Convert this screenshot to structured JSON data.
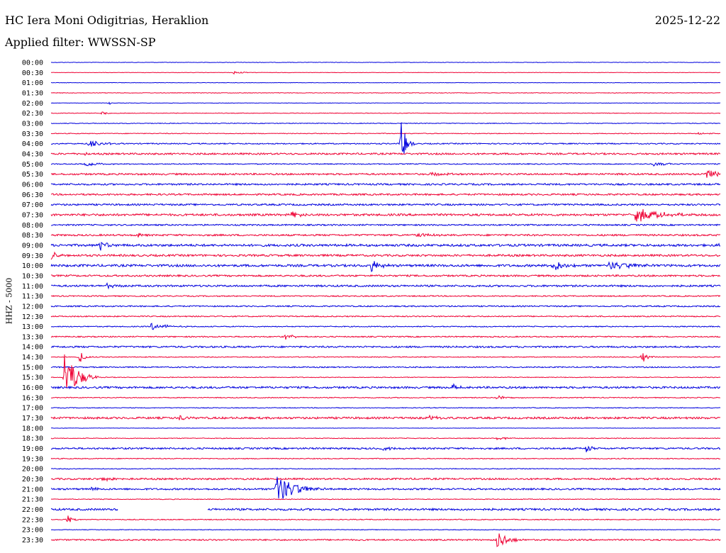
{
  "header": {
    "station": "HC Iera Moni Odigitrias, Heraklion",
    "date": "2025-12-22",
    "filter_label": "Applied filter: WWSSN-SP",
    "channel_label": "HHZ - 5000"
  },
  "colors": {
    "blue": "#0000dd",
    "red": "#ee0033"
  },
  "chart_data": {
    "type": "line",
    "title": "HC Iera Moni Odigitrias, Heraklion",
    "ylabel": "HHZ - 5000",
    "row_labels": [
      "00:00",
      "00:30",
      "01:00",
      "01:30",
      "02:00",
      "02:30",
      "03:00",
      "03:30",
      "04:00",
      "04:30",
      "05:00",
      "05:30",
      "06:00",
      "06:30",
      "07:00",
      "07:30",
      "08:00",
      "08:30",
      "09:00",
      "09:30",
      "10:00",
      "10:30",
      "11:00",
      "11:30",
      "12:00",
      "12:30",
      "13:00",
      "13:30",
      "14:00",
      "14:30",
      "15:00",
      "15:30",
      "16:00",
      "16:30",
      "17:00",
      "17:30",
      "18:00",
      "18:30",
      "19:00",
      "19:30",
      "20:00",
      "20:30",
      "21:00",
      "21:30",
      "22:00",
      "22:30",
      "23:00",
      "23:30"
    ],
    "row_colors": [
      "blue",
      "red"
    ],
    "row_minutes": 30,
    "noise_level": [
      0.3,
      0.3,
      0.3,
      0.4,
      0.3,
      0.4,
      0.5,
      0.5,
      0.8,
      1.2,
      0.7,
      1.2,
      1.2,
      1.2,
      1.2,
      1.5,
      1.0,
      1.2,
      1.6,
      1.4,
      1.6,
      1.2,
      1.3,
      0.8,
      0.9,
      0.8,
      0.7,
      0.8,
      1.2,
      0.6,
      0.8,
      0.5,
      1.4,
      0.6,
      0.5,
      1.4,
      0.3,
      0.5,
      1.2,
      0.6,
      0.5,
      1.2,
      1.2,
      0.5,
      1.4,
      0.6,
      0.4,
      1.0
    ],
    "gaps": [
      {
        "row": 44,
        "start_min": 3.0,
        "end_min": 7.0
      }
    ],
    "events": [
      {
        "row": 1,
        "minute": 8.2,
        "amp": 3,
        "dur_min": 0.8
      },
      {
        "row": 4,
        "minute": 2.6,
        "amp": 3,
        "dur_min": 0.2
      },
      {
        "row": 5,
        "minute": 2.3,
        "amp": 3,
        "dur_min": 0.6
      },
      {
        "row": 7,
        "minute": 29.0,
        "amp": 2,
        "dur_min": 1.2
      },
      {
        "row": 8,
        "minute": 1.7,
        "amp": 6,
        "dur_min": 1.5
      },
      {
        "row": 8,
        "minute": 15.7,
        "amp": 32,
        "dur_min": 0.6
      },
      {
        "row": 9,
        "minute": 1.4,
        "amp": 3,
        "dur_min": 0.6
      },
      {
        "row": 10,
        "minute": 1.5,
        "amp": 5,
        "dur_min": 1.3
      },
      {
        "row": 10,
        "minute": 27.0,
        "amp": 3,
        "dur_min": 1.8
      },
      {
        "row": 11,
        "minute": 29.4,
        "amp": 12,
        "dur_min": 0.8
      },
      {
        "row": 11,
        "minute": 17.0,
        "amp": 3,
        "dur_min": 1.5
      },
      {
        "row": 15,
        "minute": 26.2,
        "amp": 10,
        "dur_min": 3.0
      },
      {
        "row": 15,
        "minute": 10.8,
        "amp": 4,
        "dur_min": 1.2
      },
      {
        "row": 17,
        "minute": 3.9,
        "amp": 4,
        "dur_min": 0.5
      },
      {
        "row": 17,
        "minute": 16.4,
        "amp": 3,
        "dur_min": 1.5
      },
      {
        "row": 18,
        "minute": 2.2,
        "amp": 8,
        "dur_min": 0.8
      },
      {
        "row": 18,
        "minute": 30.0,
        "amp": 8,
        "dur_min": 1.0
      },
      {
        "row": 19,
        "minute": 0.0,
        "amp": 7,
        "dur_min": 0.8
      },
      {
        "row": 20,
        "minute": 14.3,
        "amp": 11,
        "dur_min": 1.0
      },
      {
        "row": 20,
        "minute": 22.5,
        "amp": 10,
        "dur_min": 1.2
      },
      {
        "row": 20,
        "minute": 25.0,
        "amp": 6,
        "dur_min": 3.0
      },
      {
        "row": 22,
        "minute": 2.5,
        "amp": 3,
        "dur_min": 1.2
      },
      {
        "row": 26,
        "minute": 4.5,
        "amp": 5,
        "dur_min": 1.8
      },
      {
        "row": 27,
        "minute": 10.5,
        "amp": 4,
        "dur_min": 1.0
      },
      {
        "row": 29,
        "minute": 1.3,
        "amp": 9,
        "dur_min": 0.6
      },
      {
        "row": 29,
        "minute": 26.5,
        "amp": 8,
        "dur_min": 0.6
      },
      {
        "row": 31,
        "minute": 0.6,
        "amp": 38,
        "dur_min": 1.5
      },
      {
        "row": 32,
        "minute": 18.0,
        "amp": 7,
        "dur_min": 0.8
      },
      {
        "row": 33,
        "minute": 20.0,
        "amp": 4,
        "dur_min": 1.2
      },
      {
        "row": 35,
        "minute": 5.8,
        "amp": 5,
        "dur_min": 0.6
      },
      {
        "row": 35,
        "minute": 17.0,
        "amp": 4,
        "dur_min": 1.0
      },
      {
        "row": 37,
        "minute": 20.0,
        "amp": 3,
        "dur_min": 1.2
      },
      {
        "row": 38,
        "minute": 14.9,
        "amp": 6,
        "dur_min": 0.6
      },
      {
        "row": 38,
        "minute": 24.0,
        "amp": 7,
        "dur_min": 0.6
      },
      {
        "row": 41,
        "minute": 2.3,
        "amp": 3,
        "dur_min": 1.2
      },
      {
        "row": 42,
        "minute": 10.1,
        "amp": 22,
        "dur_min": 2.2
      },
      {
        "row": 42,
        "minute": 1.8,
        "amp": 3,
        "dur_min": 0.8
      },
      {
        "row": 45,
        "minute": 0.7,
        "amp": 7,
        "dur_min": 0.6
      },
      {
        "row": 47,
        "minute": 20.0,
        "amp": 14,
        "dur_min": 1.2
      }
    ]
  }
}
